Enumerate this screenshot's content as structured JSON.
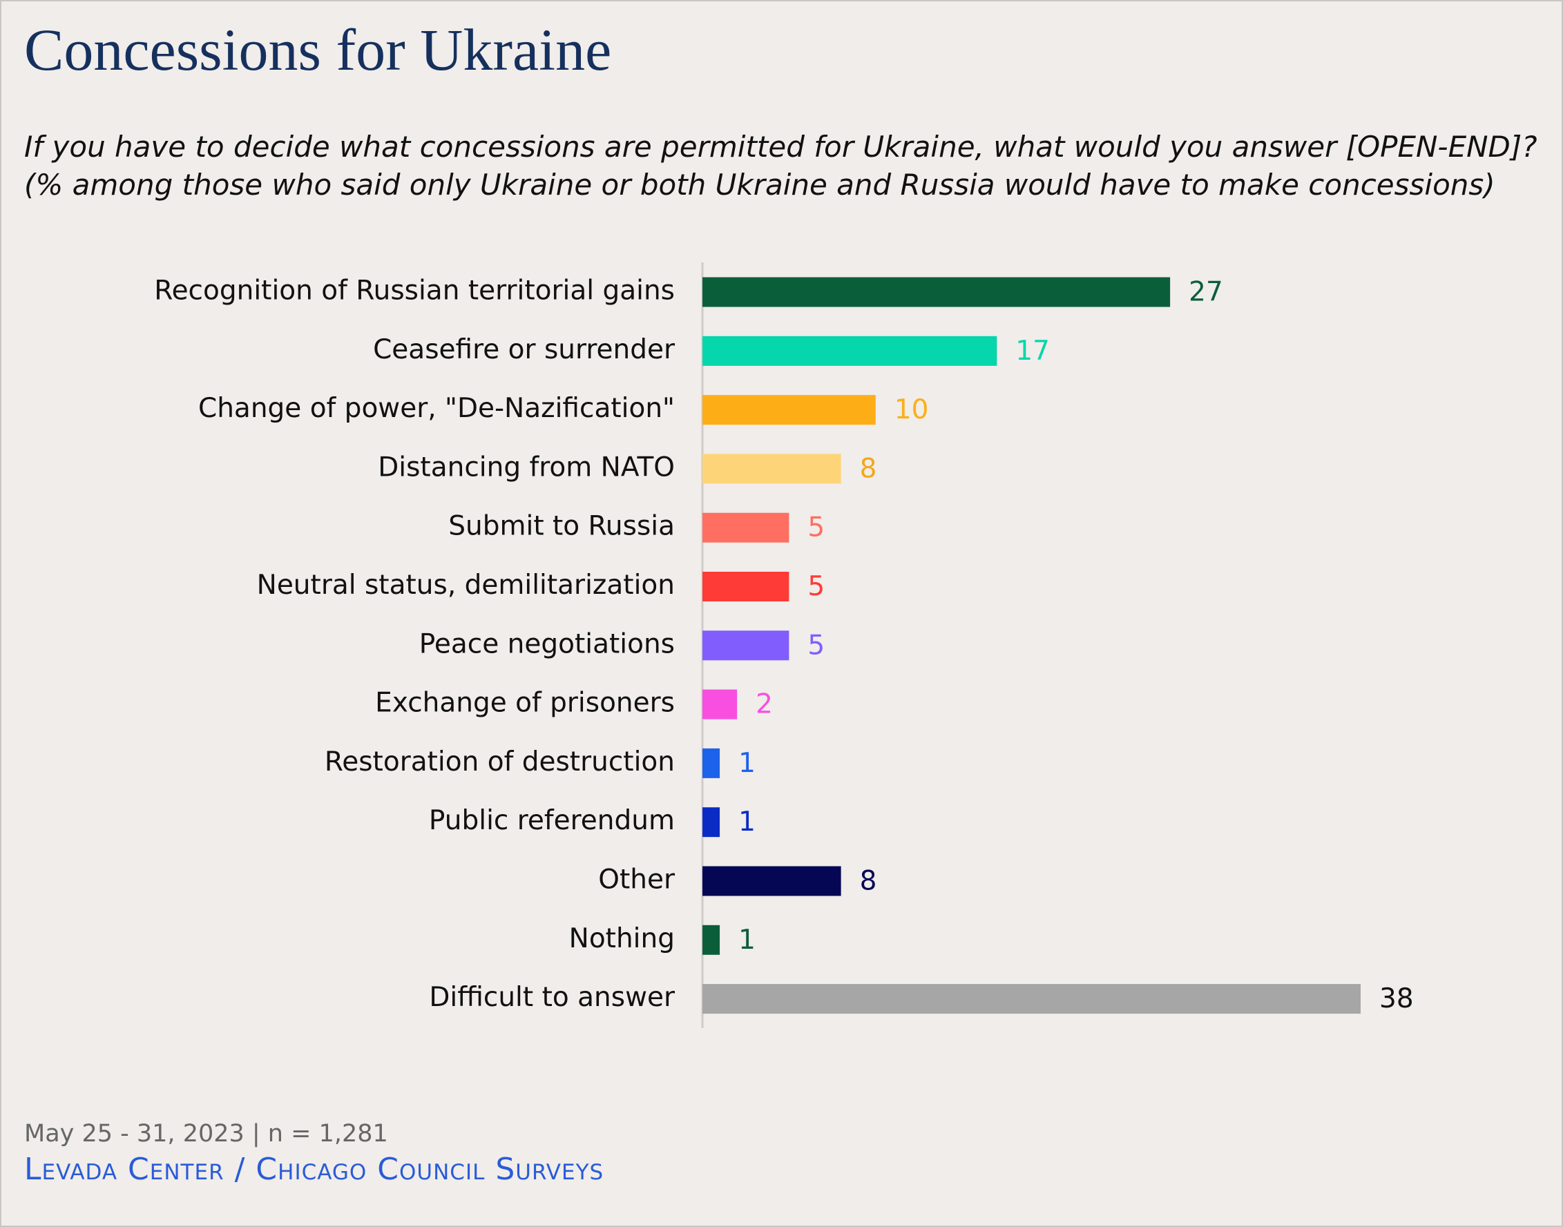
{
  "chart_data": {
    "type": "barh",
    "title": "Concessions for Ukraine",
    "subtitle": "If you have to decide what concessions are permitted for Ukraine, what would you answer [OPEN-END]? (% among those who said only Ukraine or both Ukraine and Russia would have to make concessions)",
    "categories": [
      "Recognition of Russian territorial gains",
      "Ceasefire or surrender",
      "Change of power, \"De-Nazification\"",
      "Distancing from NATO",
      "Submit to Russia",
      "Neutral status, demilitarization",
      "Peace negotiations",
      "Exchange of prisoners",
      "Restoration of destruction",
      "Public referendum",
      "Other",
      "Nothing",
      "Difficult to answer"
    ],
    "values": [
      27,
      17,
      10,
      8,
      5,
      5,
      5,
      2,
      1,
      1,
      8,
      1,
      38
    ],
    "colors": [
      "#0b5e3a",
      "#05d6ab",
      "#fdae17",
      "#fed478",
      "#ff6f61",
      "#ff3b37",
      "#825dfe",
      "#f84fe0",
      "#1c62eb",
      "#0a2cc5",
      "#050654",
      "#0b5e3a",
      "#a6a6a6"
    ],
    "label_colors": [
      "#0b5e3a",
      "#05d6ab",
      "#fdae17",
      "#f2a81c",
      "#ff6f61",
      "#ff3b37",
      "#825dfe",
      "#f84fe0",
      "#1c62eb",
      "#0a2cc5",
      "#050654",
      "#0b5e3a",
      "#111111"
    ],
    "xlim": [
      0,
      38
    ],
    "note": "May 25 - 31, 2023 | n = 1,281",
    "source": "Levada Center / Chicago Council Surveys"
  }
}
